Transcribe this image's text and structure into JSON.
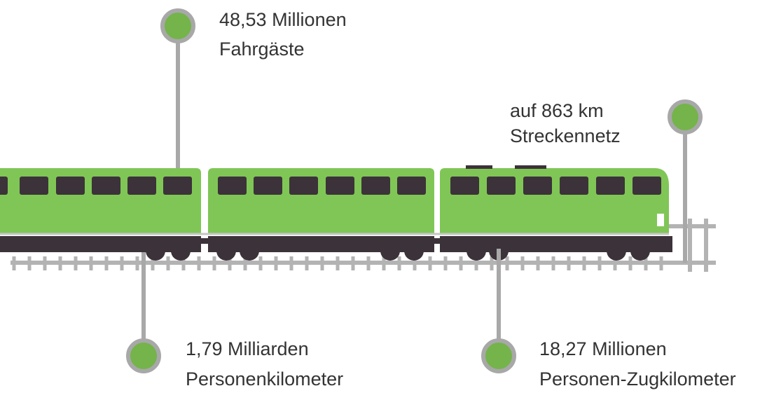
{
  "callouts": [
    {
      "value": "48,53 Millionen",
      "label": "Fahrgäste"
    },
    {
      "value": "auf 863 km",
      "label": "Streckennetz"
    },
    {
      "value": "1,79 Milliarden",
      "label": "Personenkilometer"
    },
    {
      "value": "18,27 Millionen",
      "label": "Personen-Zugkilometer"
    }
  ]
}
